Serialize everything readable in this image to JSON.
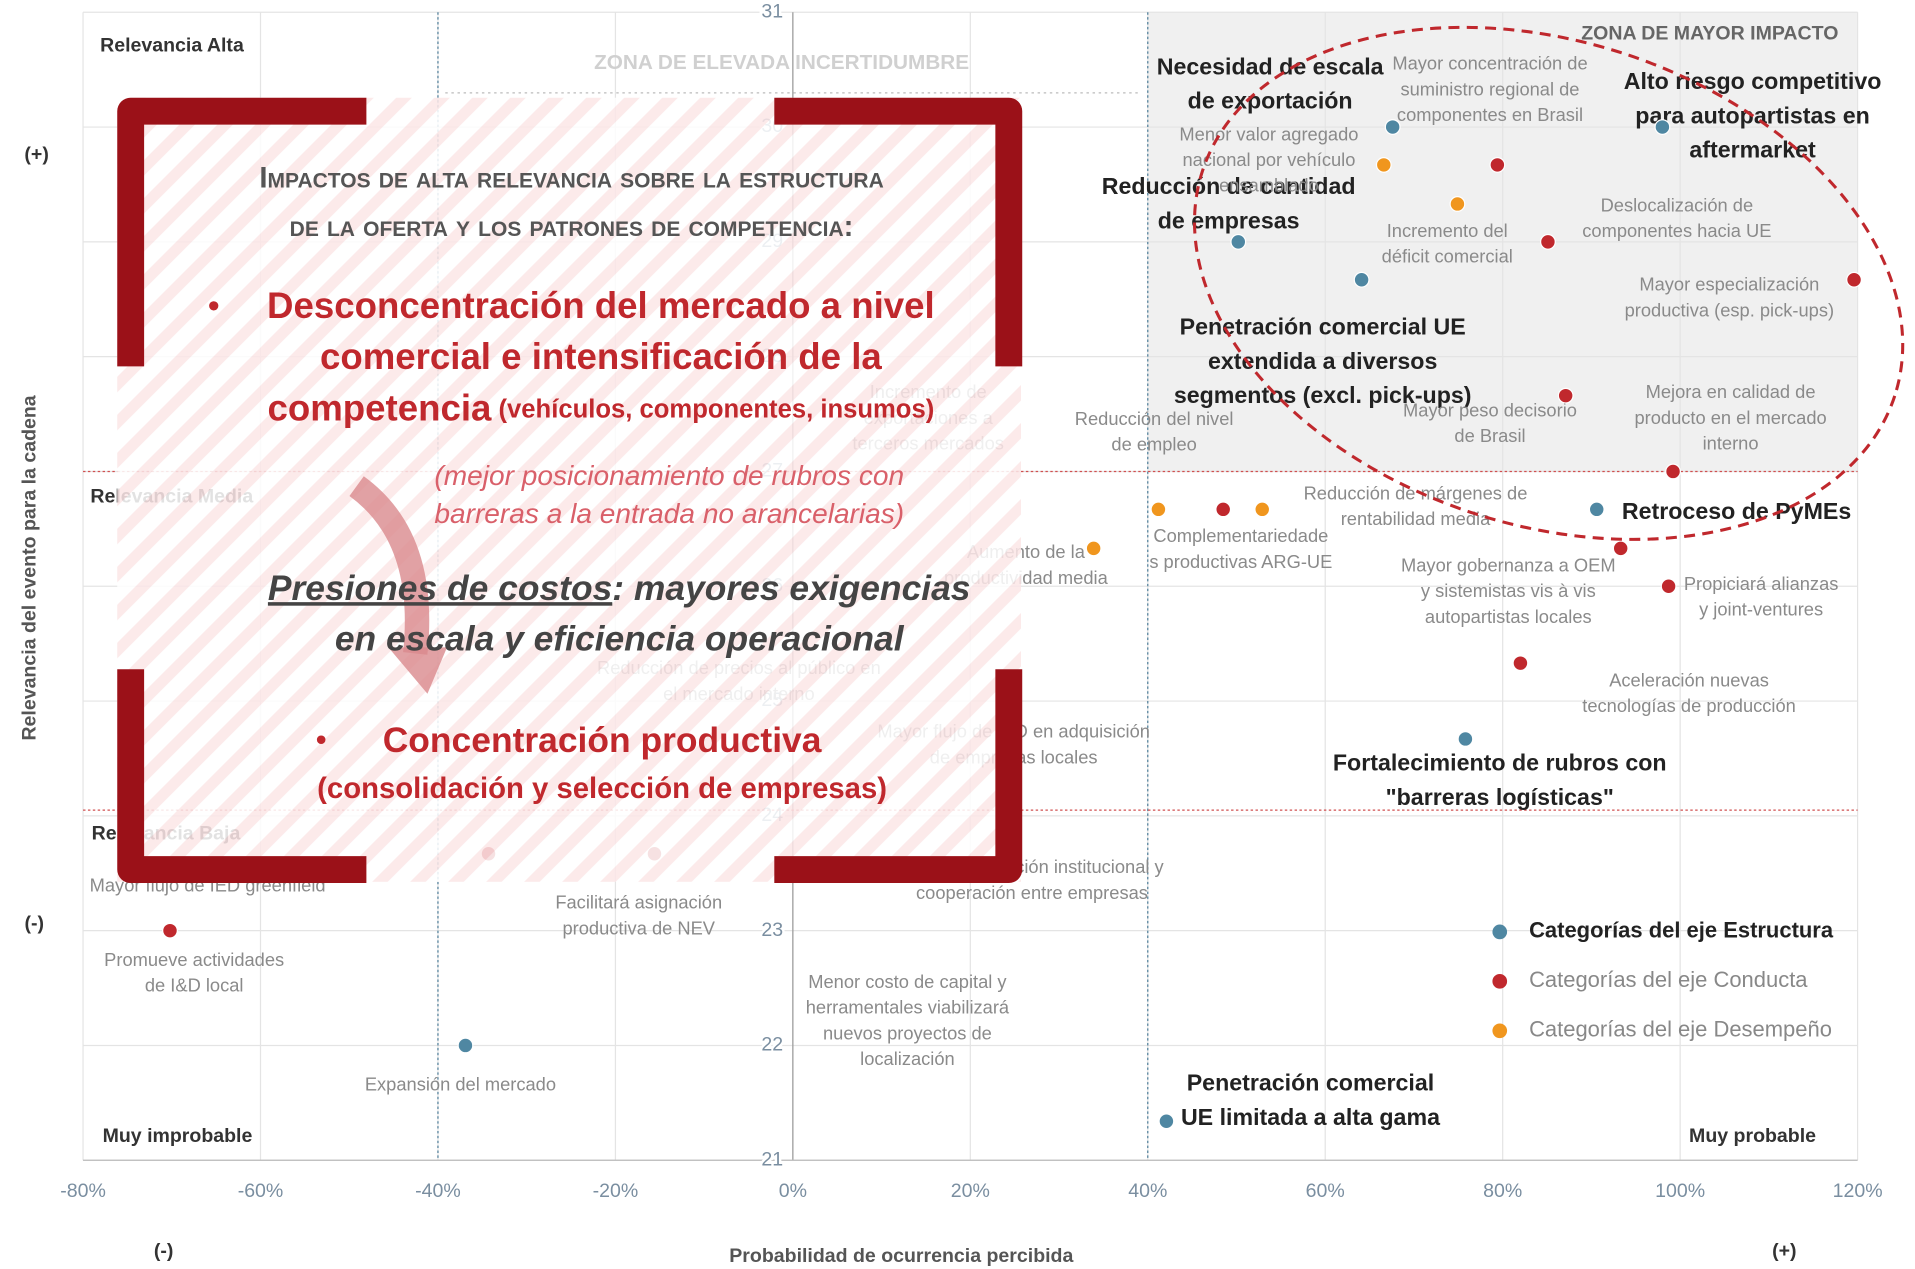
{
  "chart_data": {
    "type": "scatter",
    "xlabel": "Probabilidad de ocurrencia percibida",
    "ylabel": "Relevancia del evento para la cadena",
    "xlim": [
      -80,
      120
    ],
    "xticks": [
      {
        "value": -80,
        "label": "-80%"
      },
      {
        "value": -60,
        "label": "-60%"
      },
      {
        "value": -40,
        "label": "-40%"
      },
      {
        "value": -20,
        "label": "-20%"
      },
      {
        "value": 0,
        "label": "0%"
      },
      {
        "value": 20,
        "label": "20%"
      },
      {
        "value": 40,
        "label": "40%"
      },
      {
        "value": 60,
        "label": "60%"
      },
      {
        "value": 80,
        "label": "80%"
      },
      {
        "value": 100,
        "label": "100%"
      },
      {
        "value": 120,
        "label": "120%"
      }
    ],
    "ylim": [
      21,
      31
    ],
    "yticks": [
      21,
      22,
      23,
      24,
      25,
      26,
      27,
      28,
      29,
      30,
      31
    ],
    "grid": true,
    "thresholds": {
      "x": [
        -40,
        40
      ],
      "y": [
        24.05,
        27
      ]
    },
    "axis_marks": {
      "y_plus": "(+)",
      "y_minus": "(-)",
      "x_minus": "(-)",
      "x_plus": "(+)"
    },
    "quadrant_labels": [
      "Relevancia Alta",
      "Relevancia Media",
      "Relevancia Baja",
      "Muy improbable",
      "Muy probable"
    ],
    "zones": {
      "uncertainty": "ZONA DE ELEVADA INCERTIDUMBRE",
      "impact": "ZONA DE MAYOR IMPACTO"
    },
    "series": [
      {
        "name": "Categorías del eje Estructura",
        "color": "#4f87a2",
        "x": [
          67.6,
          98.0,
          50.2,
          64.1,
          90.6,
          75.8,
          42.1,
          -36.9
        ],
        "values": [
          30.0,
          30.0,
          29.0,
          28.67,
          26.67,
          24.67,
          21.34,
          22.0
        ],
        "labels": [
          [
            "Necesidad de escala",
            "de exportación"
          ],
          [
            "Alto riesgo competitivo",
            "para autopartistas en",
            "aftermarket"
          ],
          [
            "Reducción de cantidad",
            "de empresas"
          ],
          [
            "Penetración comercial UE",
            "extendida a diversos",
            "segmentos (excl. pick-ups)"
          ],
          [
            "Retroceso de PyMEs"
          ],
          [
            "Fortalecimiento de rubros con",
            "\"barreras logísticas\""
          ],
          [
            "Penetración comercial",
            "UE limitada a alta gama"
          ],
          [
            "Expansión del mercado"
          ]
        ]
      },
      {
        "name": "Categorías del eje Conducta",
        "color": "#c0282d",
        "x": [
          79.4,
          85.1,
          119.6,
          87.1,
          99.2,
          48.5,
          93.3,
          98.7,
          82.0,
          -70.2,
          -34.3,
          -15.6
        ],
        "values": [
          29.67,
          29.0,
          28.67,
          27.66,
          27.0,
          26.67,
          26.33,
          26.0,
          25.33,
          23.0,
          23.67,
          23.67
        ],
        "labels": [
          [
            "Mayor concentración de",
            "suministro regional de",
            "componentes en Brasil"
          ],
          [
            "Deslocalización de",
            "componentes hacia UE"
          ],
          [
            "Mayor especialización",
            "productiva (esp. pick-ups)"
          ],
          [
            "Mayor peso decisorio",
            "de Brasil"
          ],
          [
            "Mejora en calidad de",
            "producto en el mercado",
            "interno"
          ],
          [
            "Complementariedade",
            "s productivas ARG-UE"
          ],
          [
            "Mayor gobernanza a OEM",
            "y sistemistas vis à vis",
            "autopartistas locales"
          ],
          [
            "Propiciará alianzas",
            "y joint-ventures"
          ],
          [
            "Aceleración nuevas",
            "tecnologías de producción"
          ],
          [
            "Promueve actividades",
            "de I&D local"
          ],
          null,
          [
            "Facilitará asignación",
            "productiva de NEV"
          ]
        ]
      },
      {
        "name": "Categorías del eje Desempeño",
        "color": "#f0961e",
        "x": [
          66.6,
          74.9,
          41.2,
          52.9,
          33.9
        ],
        "values": [
          29.67,
          29.33,
          26.67,
          26.67,
          26.33
        ],
        "labels": [
          [
            "Menor valor agregado",
            "nacional por vehículo",
            "ensamblado"
          ],
          [
            "Incremento del",
            "déficit comercial"
          ],
          [
            "Reducción del nivel",
            "de empleo"
          ],
          [
            "Reducción de márgenes de",
            "rentabilidad media"
          ],
          [
            "Aumento de la",
            "productividad media"
          ]
        ]
      }
    ],
    "other_labels": [
      [
        "Menor costo de capital y",
        "herramentales viabilizará",
        "nuevos proyectos de",
        "localización"
      ],
      [
        "Mayor flujo de IED greenfield"
      ],
      [
        "Mayor articulación institucional y",
        "cooperación entre empresas"
      ],
      [
        "Mayor flujo de IED en adquisición",
        "de empresas locales"
      ],
      [
        "Reducción de precios al público en",
        "el mercado interno"
      ],
      [
        "Incremento de",
        "exportaciones a",
        "terceros mercados"
      ]
    ],
    "callout": {
      "heading": [
        "Impactos de alta relevancia sobre la estructura",
        "de la oferta y los patrones de competencia:"
      ],
      "bullet": "•",
      "point1": [
        "Desconcentración del mercado a nivel",
        "comercial e intensificación de la",
        "competencia"
      ],
      "point1_note": " (vehículos, componentes, insumos)",
      "note": [
        "(mejor posicionamiento de rubros con",
        "barreras a la entrada no arancelarias)"
      ],
      "pressure": "Presiones de costos",
      "pressure_rest": [
        ": mayores exigencias",
        "en escala y eficiencia operacional"
      ],
      "point2": "Concentración productiva",
      "point2_note": "(consolidación y selección de empresas)"
    }
  }
}
